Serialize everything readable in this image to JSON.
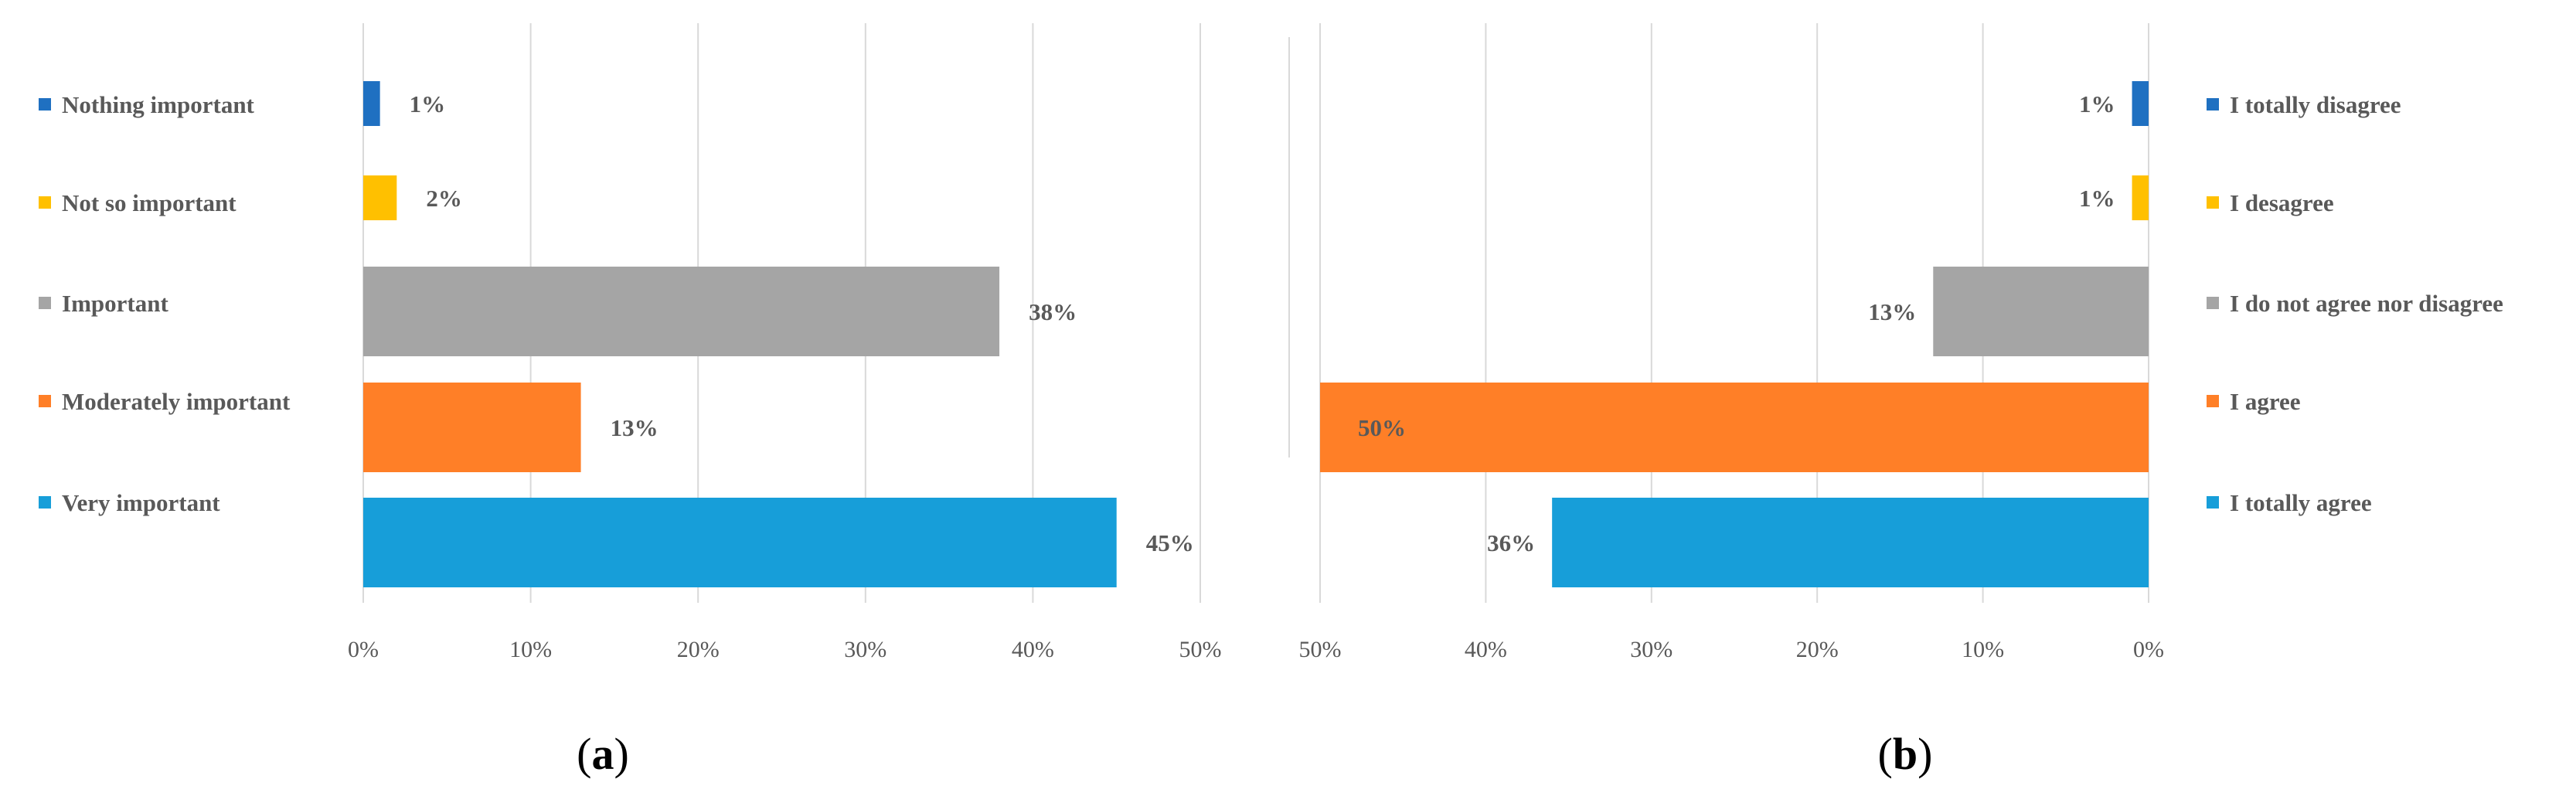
{
  "chart_data": [
    {
      "type": "bar",
      "orientation": "horizontal",
      "categories": [
        "Nothing important",
        "Not so important",
        "Important",
        "Moderately important",
        "Very important"
      ],
      "values": [
        1,
        2,
        38,
        13,
        45
      ],
      "value_labels": [
        "1%",
        "2%",
        "38%",
        "13%",
        "45%"
      ],
      "colors": [
        "#1F70C1",
        "#FFC000",
        "#A5A5A5",
        "#FF7F27",
        "#179ED9"
      ],
      "xlim": [
        0,
        50
      ],
      "x_ticks": [
        "0%",
        "10%",
        "20%",
        "30%",
        "40%",
        "50%"
      ],
      "legend": "left",
      "grid": true,
      "panel_label": {
        "open": "(",
        "letter": "a",
        "close": ")"
      }
    },
    {
      "type": "bar",
      "orientation": "horizontal",
      "x_reversed": true,
      "categories": [
        "I totally disagree",
        "I desagree",
        "I do not agree nor disagree",
        "I agree",
        "I totally agree"
      ],
      "values": [
        1,
        1,
        13,
        50,
        36
      ],
      "value_labels": [
        "1%",
        "1%",
        "13%",
        "50%",
        "36%"
      ],
      "colors": [
        "#1F70C1",
        "#FFC000",
        "#A5A5A5",
        "#FF7F27",
        "#179ED9"
      ],
      "xlim": [
        0,
        50
      ],
      "x_ticks": [
        "50%",
        "40%",
        "30%",
        "20%",
        "10%",
        "0%"
      ],
      "legend": "right",
      "grid": true,
      "panel_label": {
        "open": "(",
        "letter": "b",
        "close": ")"
      }
    }
  ]
}
